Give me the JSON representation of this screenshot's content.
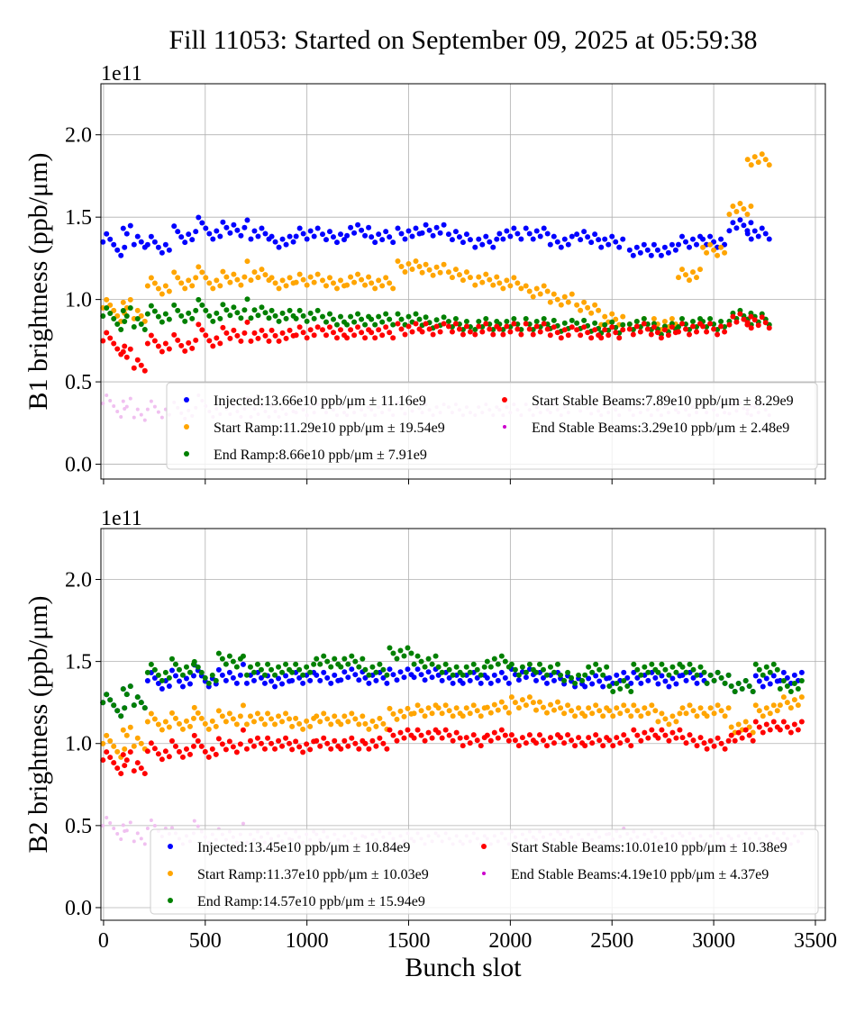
{
  "title": "Fill 11053: Started on September 09, 2025 at 05:59:38",
  "chart_data": [
    {
      "type": "scatter",
      "ylabel": "B1 brightness (ppb/μm)",
      "xlabel": "",
      "y_scale_label": "1e11",
      "xlim": [
        -13,
        3549
      ],
      "ylim": [
        -0.09,
        2.31
      ],
      "xticks": [
        "0",
        "500",
        "1000",
        "1500",
        "2000",
        "2500",
        "3000",
        "3500"
      ],
      "yticks": [
        "0.0",
        "0.5",
        "1.0",
        "1.5",
        "2.0"
      ],
      "grid": true,
      "legend_placement": "lower-right",
      "x": [
        50,
        150,
        270,
        400,
        520,
        640,
        760,
        880,
        1000,
        1130,
        1250,
        1370,
        1500,
        1620,
        1750,
        1880,
        2000,
        2130,
        2250,
        2380,
        2500,
        2640,
        2760,
        2880,
        3000,
        3130,
        3220
      ],
      "series": [
        {
          "name": "Injected:13.66e10 ppb/μm ± 11.16e9",
          "color": "#0000ff",
          "values": [
            1.3,
            1.35,
            1.3,
            1.38,
            1.4,
            1.42,
            1.4,
            1.35,
            1.4,
            1.38,
            1.42,
            1.38,
            1.4,
            1.42,
            1.38,
            1.35,
            1.4,
            1.4,
            1.35,
            1.38,
            1.35,
            1.3,
            1.3,
            1.35,
            1.35,
            1.45,
            1.4
          ]
        },
        {
          "name": "Start Ramp:11.29e10 ppb/μm ± 19.54e9",
          "color": "#ffa500",
          "values": [
            0.9,
            0.9,
            1.05,
            1.1,
            1.1,
            1.12,
            1.15,
            1.1,
            1.12,
            1.1,
            1.12,
            1.1,
            1.2,
            1.18,
            1.15,
            1.12,
            1.1,
            1.05,
            1.0,
            0.95,
            0.88,
            0.85,
            0.85,
            1.15,
            1.3,
            1.55,
            1.85
          ]
        },
        {
          "name": "End Ramp:8.66e10 ppb/μm ± 7.91e9",
          "color": "#008000",
          "values": [
            0.85,
            0.85,
            0.88,
            0.9,
            0.9,
            0.92,
            0.92,
            0.9,
            0.9,
            0.88,
            0.88,
            0.88,
            0.88,
            0.86,
            0.85,
            0.85,
            0.85,
            0.85,
            0.84,
            0.84,
            0.83,
            0.85,
            0.82,
            0.85,
            0.85,
            0.9,
            0.88
          ]
        },
        {
          "name": "Start Stable Beams:7.89e10 ppb/μm ± 8.29e9",
          "color": "#ff0000",
          "values": [
            0.7,
            0.6,
            0.7,
            0.72,
            0.75,
            0.78,
            0.78,
            0.78,
            0.8,
            0.8,
            0.8,
            0.8,
            0.82,
            0.82,
            0.82,
            0.82,
            0.82,
            0.82,
            0.8,
            0.8,
            0.8,
            0.82,
            0.8,
            0.82,
            0.82,
            0.88,
            0.86
          ]
        },
        {
          "name": "End Stable Beams:3.29e10 ppb/μm ± 2.48e9",
          "color": "#cc00cc",
          "values": [
            0.32,
            0.3,
            0.3,
            0.31,
            0.32,
            0.32,
            0.32,
            0.32,
            0.33,
            0.33,
            0.33,
            0.33,
            0.34,
            0.33,
            0.33,
            0.33,
            0.33,
            0.33,
            0.33,
            0.34,
            0.33,
            0.33,
            0.33,
            0.33,
            0.33,
            0.34,
            0.33
          ]
        }
      ]
    },
    {
      "type": "scatter",
      "ylabel": "B2 brightness (ppb/μm)",
      "xlabel": "Bunch slot",
      "y_scale_label": "1e11",
      "xlim": [
        -13,
        3549
      ],
      "ylim": [
        -0.077,
        2.31
      ],
      "xticks": [
        "0",
        "500",
        "1000",
        "1500",
        "2000",
        "2500",
        "3000",
        "3500"
      ],
      "yticks": [
        "0.0",
        "0.5",
        "1.0",
        "1.5",
        "2.0"
      ],
      "grid": true,
      "legend_placement": "lower-right",
      "x": [
        50,
        150,
        270,
        390,
        500,
        620,
        740,
        860,
        980,
        1100,
        1220,
        1340,
        1460,
        1580,
        1700,
        1820,
        1940,
        2060,
        2180,
        2300,
        2420,
        2540,
        2660,
        2780,
        2900,
        3020,
        3140,
        3260,
        3380
      ],
      "series": [
        {
          "name": "Injected:13.45e10 ppb/μm ± 10.84e9",
          "color": "#0000ff",
          "values": [
            1.2,
            1.25,
            1.35,
            1.38,
            1.38,
            1.4,
            1.4,
            1.38,
            1.4,
            1.4,
            1.42,
            1.4,
            1.42,
            1.42,
            1.4,
            1.4,
            1.4,
            1.42,
            1.4,
            1.38,
            1.38,
            1.4,
            1.4,
            1.38,
            1.4,
            1.4,
            1.35,
            1.38,
            1.4
          ]
        },
        {
          "name": "Start Ramp:11.37e10 ppb/μm ± 10.03e9",
          "color": "#ffa500",
          "values": [
            0.95,
            1.0,
            1.1,
            1.12,
            1.12,
            1.15,
            1.15,
            1.15,
            1.12,
            1.15,
            1.15,
            1.12,
            1.18,
            1.2,
            1.2,
            1.2,
            1.22,
            1.25,
            1.22,
            1.2,
            1.2,
            1.2,
            1.2,
            1.15,
            1.2,
            1.2,
            1.1,
            1.2,
            1.25
          ]
        },
        {
          "name": "End Ramp:14.57e10 ppb/μm ± 15.94e9",
          "color": "#008000",
          "values": [
            1.2,
            1.25,
            1.4,
            1.45,
            1.4,
            1.5,
            1.45,
            1.45,
            1.45,
            1.5,
            1.5,
            1.45,
            1.55,
            1.5,
            1.45,
            1.45,
            1.5,
            1.45,
            1.45,
            1.4,
            1.45,
            1.35,
            1.45,
            1.45,
            1.45,
            1.4,
            1.35,
            1.45,
            1.35
          ]
        },
        {
          "name": "Start Stable Beams:10.01e10 ppb/μm ± 10.38e9",
          "color": "#ff0000",
          "values": [
            0.85,
            0.85,
            0.92,
            0.95,
            0.95,
            0.98,
            1.0,
            1.0,
            0.98,
            1.0,
            1.0,
            1.0,
            1.05,
            1.05,
            1.05,
            1.02,
            1.05,
            1.02,
            1.02,
            1.02,
            1.02,
            1.02,
            1.05,
            1.05,
            1.02,
            1.0,
            1.05,
            1.1,
            1.1
          ]
        },
        {
          "name": "End Stable Beams:4.19e10 ppb/μm ± 4.37e9",
          "color": "#cc00cc",
          "values": [
            0.45,
            0.42,
            0.45,
            0.42,
            0.43,
            0.43,
            0.43,
            0.42,
            0.43,
            0.43,
            0.42,
            0.43,
            0.42,
            0.42,
            0.42,
            0.42,
            0.42,
            0.43,
            0.43,
            0.43,
            0.43,
            0.45,
            0.43,
            0.42,
            0.42,
            0.42,
            0.42,
            0.42,
            0.42
          ]
        }
      ]
    }
  ]
}
